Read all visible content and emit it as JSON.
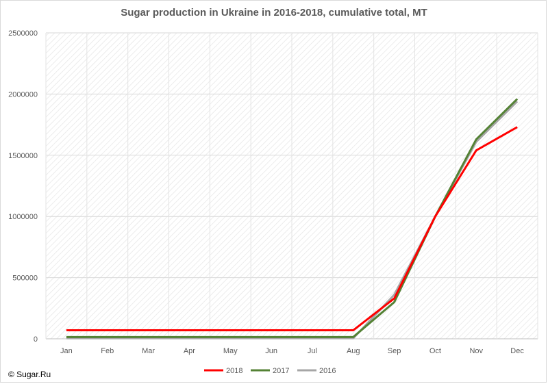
{
  "chart_data": {
    "type": "line",
    "title": "Sugar production in Ukraine in 2016-2018, cumulative total, MT",
    "xlabel": "",
    "ylabel": "",
    "categories": [
      "Jan",
      "Feb",
      "Mar",
      "Apr",
      "May",
      "Jun",
      "Jul",
      "Aug",
      "Sep",
      "Oct",
      "Nov",
      "Dec"
    ],
    "ylim": [
      0,
      2500000
    ],
    "yticks": [
      0,
      500000,
      1000000,
      1500000,
      2000000,
      2500000
    ],
    "ytick_labels": [
      "0",
      "500000",
      "1000000",
      "1500000",
      "2000000",
      "2500000"
    ],
    "grid": true,
    "legend_position": "bottom",
    "series": [
      {
        "name": "2018",
        "color": "#ff0000",
        "values": [
          70000,
          70000,
          70000,
          70000,
          70000,
          70000,
          70000,
          70000,
          330000,
          1000000,
          1540000,
          1730000
        ]
      },
      {
        "name": "2017",
        "color": "#548235",
        "values": [
          15000,
          15000,
          15000,
          15000,
          15000,
          15000,
          15000,
          15000,
          300000,
          1000000,
          1630000,
          1960000
        ]
      },
      {
        "name": "2016",
        "color": "#a6a6a6",
        "values": [
          5000,
          5000,
          5000,
          5000,
          5000,
          5000,
          5000,
          5000,
          360000,
          1000000,
          1610000,
          1940000
        ]
      }
    ]
  },
  "source_note": "© Sugar.Ru"
}
